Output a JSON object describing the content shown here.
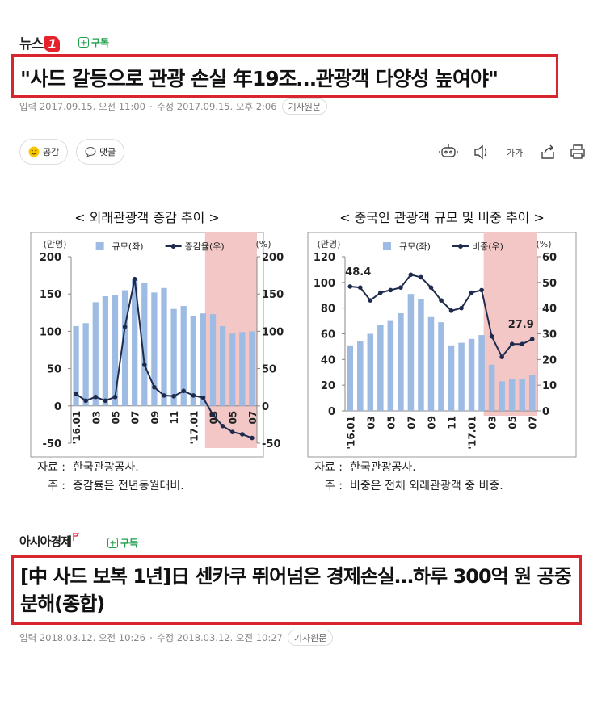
{
  "articles": [
    {
      "source_name": "뉴스",
      "source_badge": "1",
      "subscribe": "구독",
      "headline": "\"사드 갈등으로 관광 손실 年19조…관광객 다양성 높여야\"",
      "published": "입력 2017.09.15. 오전 11:00",
      "modified": "수정 2017.09.15. 오후 2:06",
      "original": "기사원문"
    },
    {
      "source_name": "아시아경제",
      "subscribe": "구독",
      "headline": "[中 사드 보복 1년]日 센카쿠 뛰어넘은 경제손실…하루 300억 원 공중분해(종합)",
      "published": "입력 2018.03.12. 오전 10:26",
      "modified": "수정 2018.03.12. 오전 10:27",
      "original": "기사원문"
    }
  ],
  "toolbar": {
    "like": "공감",
    "comment": "댓글",
    "font": "가가"
  },
  "charts": [
    {
      "type": "bar_line",
      "title": "< 외래관광객 증감 추이 >",
      "y_unit": "(만명)",
      "y2_unit": "(%)",
      "categories": [
        "'16.01",
        null,
        "03",
        null,
        "05",
        null,
        "07",
        null,
        "09",
        null,
        "11",
        null,
        "'17.01",
        null,
        "03",
        null,
        "05",
        null,
        "07"
      ],
      "series": [
        {
          "name": "규모(좌)",
          "color": "#9dbbe3",
          "values": [
            107,
            111,
            139,
            147,
            149,
            155,
            170,
            165,
            152,
            158,
            130,
            134,
            121,
            124,
            123,
            107,
            97,
            99,
            100
          ]
        },
        {
          "name": "증감율(우)",
          "color": "#1f2b4d",
          "axis": "y2",
          "values": [
            16,
            7,
            12,
            7,
            12,
            106,
            170,
            55,
            25,
            14,
            13,
            20,
            14,
            11,
            -12,
            -27,
            -35,
            -38,
            -43
          ]
        }
      ],
      "ylim": [
        -50,
        200
      ],
      "yticks": [
        -50,
        0,
        50,
        100,
        150,
        200
      ],
      "y2lim": [
        -50,
        200
      ],
      "y2ticks": [
        -50,
        0,
        50,
        100,
        150,
        200
      ],
      "notes": [
        {
          "label": "자료 :",
          "text": "한국관광공사."
        },
        {
          "label": "주 :",
          "text": "증감률은 전년동월대비."
        }
      ]
    },
    {
      "type": "bar_line",
      "title": "< 중국인 관광객 규모 및 비중 추이 >",
      "y_unit": "(만명)",
      "y2_unit": "(%)",
      "categories": [
        "'16.01",
        null,
        "03",
        null,
        "05",
        null,
        "07",
        null,
        "09",
        null,
        "11",
        null,
        "'17.01",
        null,
        "03",
        null,
        "05",
        null,
        "07"
      ],
      "series": [
        {
          "name": "규모(좌)",
          "color": "#9dbbe3",
          "values": [
            51,
            54,
            60,
            67,
            70,
            76,
            91,
            87,
            73,
            69,
            51,
            53,
            56,
            59,
            36,
            23,
            25,
            25,
            28
          ]
        },
        {
          "name": "비중(우)",
          "color": "#1f2b4d",
          "axis": "y2",
          "values": [
            48.4,
            48,
            43,
            46,
            47,
            48,
            53,
            52,
            48,
            43,
            39,
            40,
            46,
            47,
            29,
            21,
            26,
            26,
            27.9
          ],
          "value_labels": [
            "48.4",
            null,
            null,
            null,
            null,
            null,
            null,
            null,
            null,
            null,
            null,
            null,
            null,
            null,
            null,
            null,
            null,
            null,
            "27.9"
          ]
        }
      ],
      "ylim": [
        0,
        120
      ],
      "yticks": [
        0,
        20,
        40,
        60,
        80,
        100,
        120
      ],
      "y2lim": [
        0,
        60
      ],
      "y2ticks": [
        0,
        10,
        20,
        30,
        40,
        50,
        60
      ],
      "notes": [
        {
          "label": "자료 :",
          "text": "한국관광공사."
        },
        {
          "label": "주 :",
          "text": "비중은 전체 외래관광객 중 비중."
        }
      ]
    }
  ]
}
